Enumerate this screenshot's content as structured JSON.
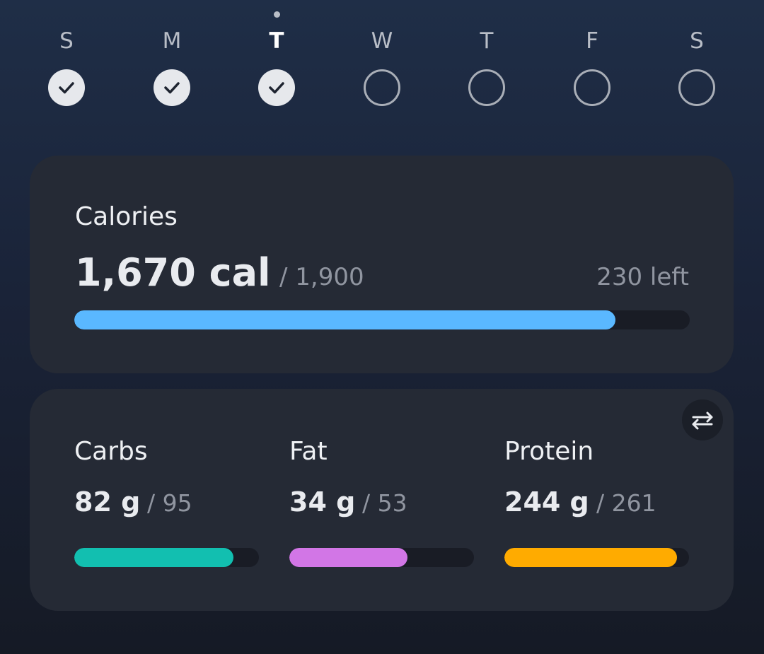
{
  "days": [
    {
      "label": "S",
      "done": true,
      "current": false
    },
    {
      "label": "M",
      "done": true,
      "current": false
    },
    {
      "label": "T",
      "done": true,
      "current": true
    },
    {
      "label": "W",
      "done": false,
      "current": false
    },
    {
      "label": "T",
      "done": false,
      "current": false
    },
    {
      "label": "F",
      "done": false,
      "current": false
    },
    {
      "label": "S",
      "done": false,
      "current": false
    }
  ],
  "calories": {
    "title": "Calories",
    "value": {
      "value": 1670,
      "label": "1,670 cal"
    },
    "goal": {
      "value": 1900,
      "label": "/ 1,900"
    },
    "left": {
      "value": 230,
      "label": "230 left"
    },
    "color": "#5ab8ff"
  },
  "macros": [
    {
      "title": "Carbs",
      "value": {
        "value": 82,
        "label": "82 g"
      },
      "goal": {
        "value": 95,
        "label": "/ 95"
      },
      "color": "#12bfb0"
    },
    {
      "title": "Fat",
      "value": {
        "value": 34,
        "label": "34 g"
      },
      "goal": {
        "value": 53,
        "label": "/ 53"
      },
      "color": "#d276e6"
    },
    {
      "title": "Protein",
      "value": {
        "value": 244,
        "label": "244 g"
      },
      "goal": {
        "value": 261,
        "label": "/ 261"
      },
      "color": "#ffab00"
    }
  ]
}
